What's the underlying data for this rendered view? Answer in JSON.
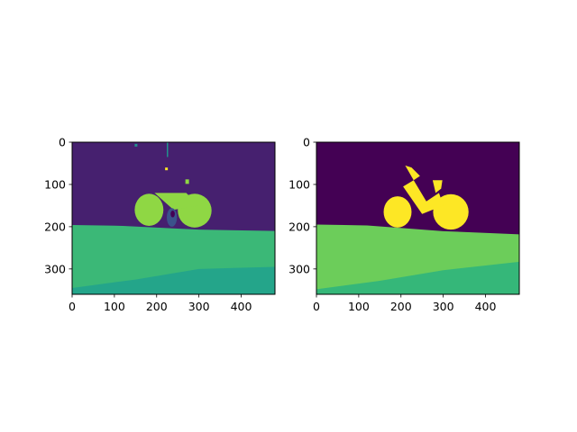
{
  "figure": {
    "background": "#ffffff"
  },
  "colors": {
    "sky_left": "#46206f",
    "sky_right": "#440154",
    "bike_left": "#8fd744",
    "bike_right": "#fde725",
    "ground_left": "#3bb877",
    "road_left": "#24a58a",
    "ground_right": "#6ccd5a",
    "road_right": "#35b779",
    "noise_dark": "#3b528b",
    "noise_teal": "#21918c",
    "noise_yellow": "#fde725"
  },
  "chart_data": [
    {
      "type": "heatmap",
      "description_key": "left-panel",
      "x_ticks": [
        0,
        100,
        200,
        300,
        400
      ],
      "y_ticks": [
        0,
        100,
        200,
        300
      ],
      "xlim": [
        0,
        480
      ],
      "ylim": [
        360,
        0
      ],
      "image_size": [
        480,
        360
      ],
      "regions": [
        {
          "name": "sky",
          "color_key": "sky_left"
        },
        {
          "name": "bicycle",
          "color_key": "bike_left"
        },
        {
          "name": "grass",
          "color_key": "ground_left",
          "boundary_left_y": 196,
          "boundary_right_y": 210
        },
        {
          "name": "path",
          "color_key": "road_left",
          "boundary_left_y": 345,
          "boundary_right_y": 295
        }
      ]
    },
    {
      "type": "heatmap",
      "description_key": "right-panel",
      "x_ticks": [
        0,
        100,
        200,
        300,
        400
      ],
      "y_ticks": [
        0,
        100,
        200,
        300
      ],
      "xlim": [
        0,
        480
      ],
      "ylim": [
        360,
        0
      ],
      "image_size": [
        480,
        360
      ],
      "regions": [
        {
          "name": "sky",
          "color_key": "sky_right"
        },
        {
          "name": "bicycle",
          "color_key": "bike_right"
        },
        {
          "name": "grass",
          "color_key": "ground_right",
          "boundary_left_y": 195,
          "boundary_right_y": 218
        },
        {
          "name": "path",
          "color_key": "road_right",
          "boundary_left_y": 348,
          "boundary_right_y": 283
        }
      ]
    }
  ]
}
